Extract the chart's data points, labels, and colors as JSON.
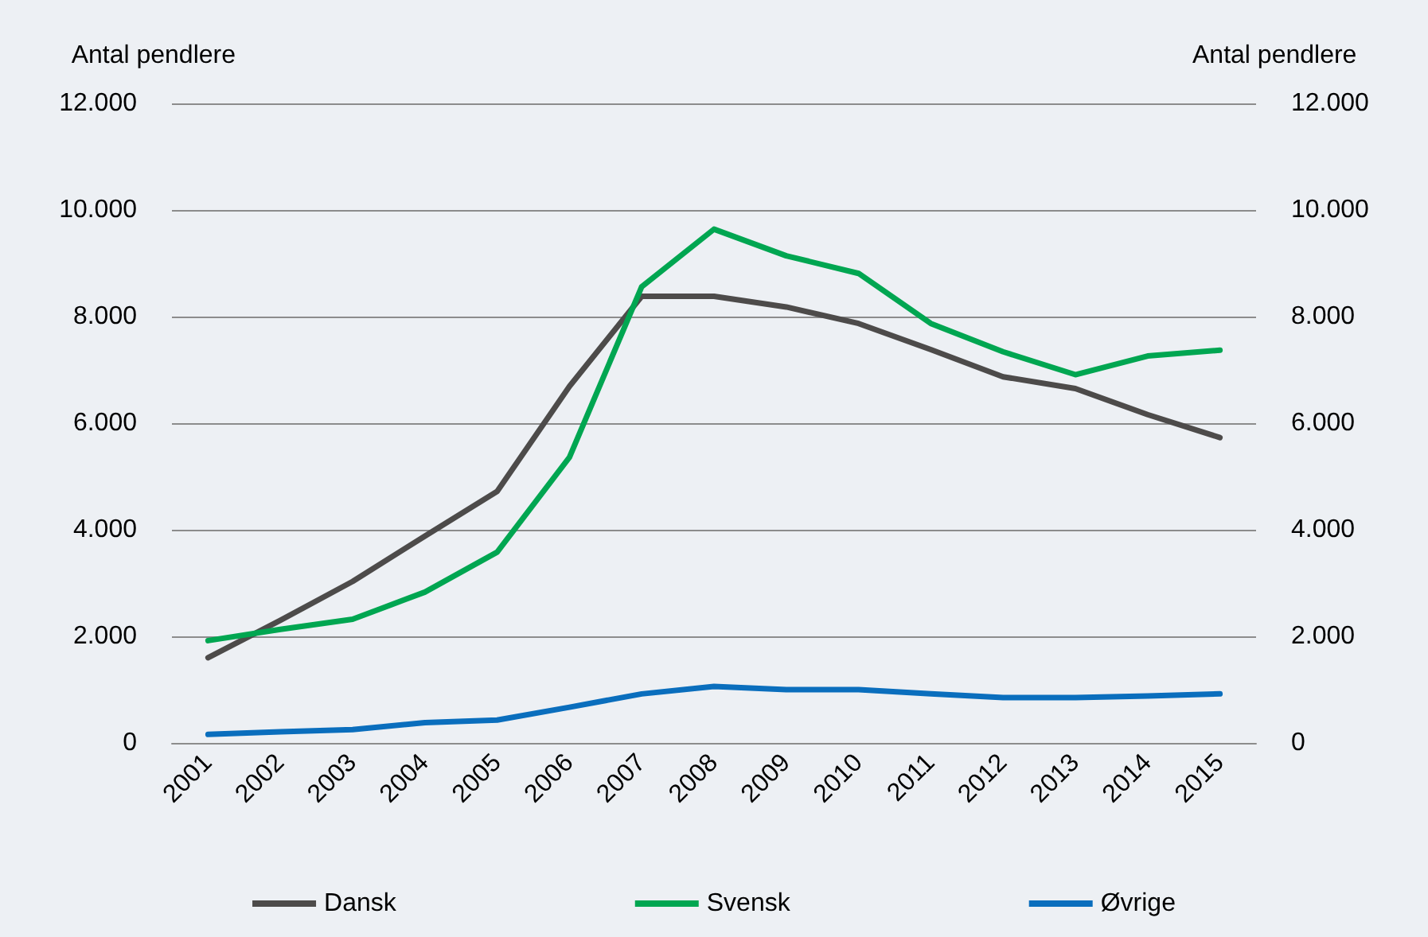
{
  "chart_data": {
    "type": "line",
    "ylabel": "Antal pendlere",
    "y2label": "Antal pendlere",
    "categories": [
      "2001",
      "2002",
      "2003",
      "2004",
      "2005",
      "2006",
      "2007",
      "2008",
      "2009",
      "2010",
      "2011",
      "2012",
      "2013",
      "2014",
      "2015"
    ],
    "series": [
      {
        "name": "Dansk",
        "color": "#4d4b4a",
        "values": [
          1600,
          2300,
          3030,
          3880,
          4720,
          6690,
          8380,
          8380,
          8180,
          7870,
          7380,
          6870,
          6650,
          6160,
          5730
        ]
      },
      {
        "name": "Svensk",
        "color": "#00a651",
        "values": [
          1920,
          2130,
          2320,
          2830,
          3580,
          5360,
          8560,
          9640,
          9140,
          8810,
          7870,
          7340,
          6910,
          7260,
          7370
        ]
      },
      {
        "name": "Øvrige",
        "color": "#0a6ebd",
        "values": [
          160,
          210,
          250,
          380,
          430,
          670,
          920,
          1060,
          1000,
          1000,
          920,
          850,
          850,
          880,
          920
        ]
      }
    ],
    "ylim": [
      0,
      12000
    ],
    "yticks": [
      {
        "value": 0,
        "label": "0"
      },
      {
        "value": 2000,
        "label": "2.000"
      },
      {
        "value": 4000,
        "label": "4.000"
      },
      {
        "value": 6000,
        "label": "6.000"
      },
      {
        "value": 8000,
        "label": "8.000"
      },
      {
        "value": 10000,
        "label": "10.000"
      },
      {
        "value": 12000,
        "label": "12.000"
      }
    ],
    "y2lim": [
      0,
      12000
    ],
    "y2ticks": [
      {
        "value": 0,
        "label": "0"
      },
      {
        "value": 2000,
        "label": "2.000"
      },
      {
        "value": 4000,
        "label": "4.000"
      },
      {
        "value": 6000,
        "label": "6.000"
      },
      {
        "value": 8000,
        "label": "8.000"
      },
      {
        "value": 10000,
        "label": "10.000"
      },
      {
        "value": 12000,
        "label": "12.000"
      }
    ],
    "grid": "y",
    "legend": "bottom",
    "marker": "none",
    "line_style": "solid"
  }
}
